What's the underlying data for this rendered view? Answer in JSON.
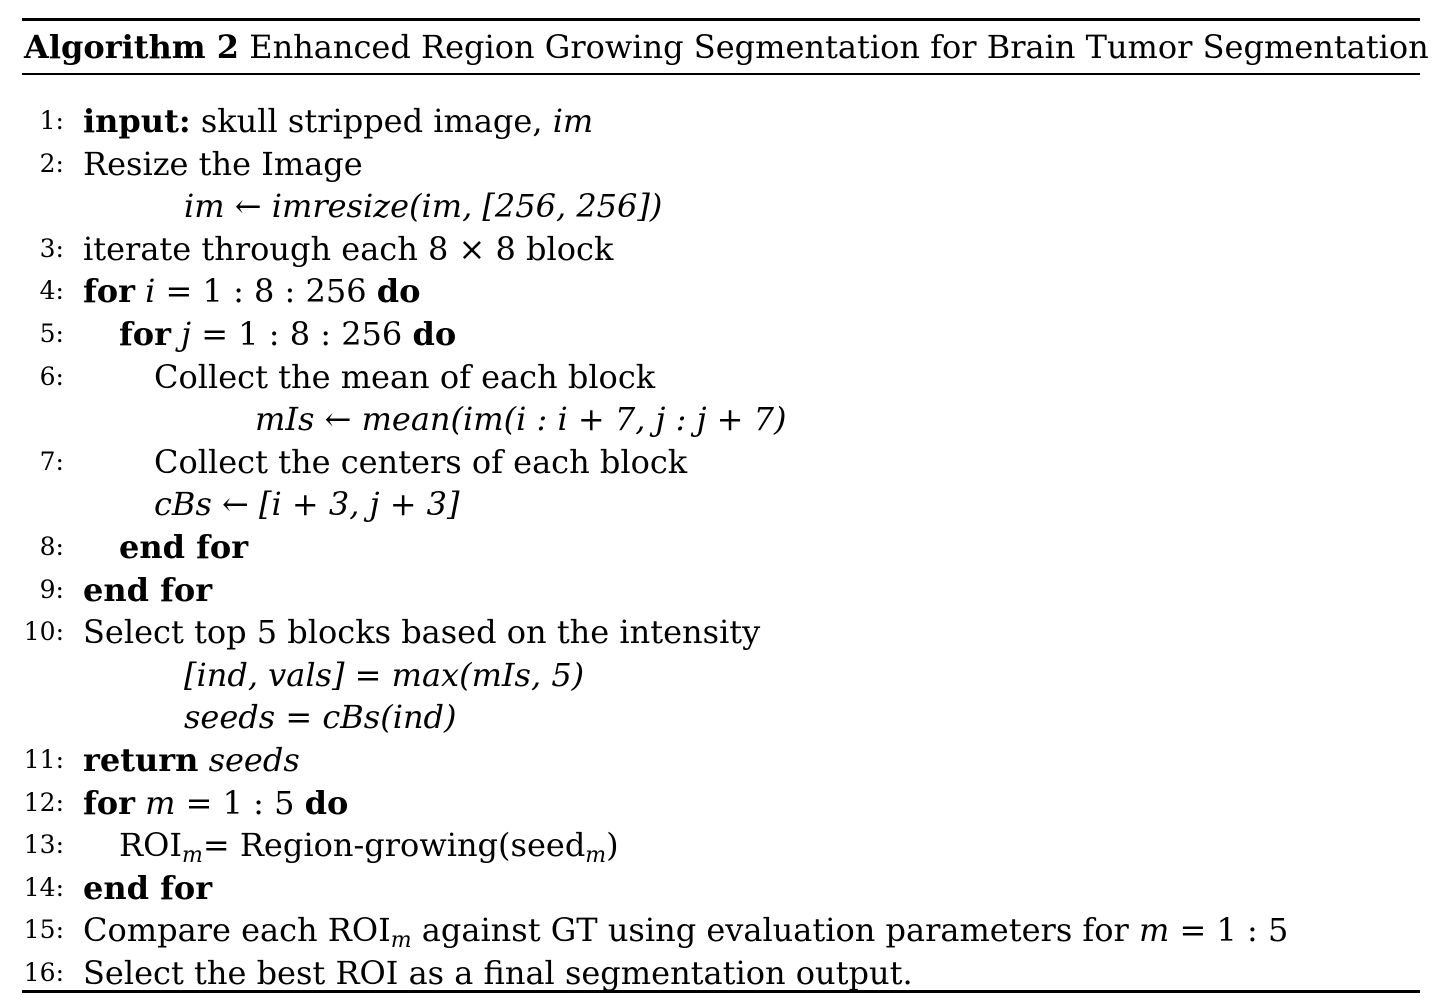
{
  "caption": {
    "label": "Algorithm 2",
    "title": "Enhanced Region Growing Segmentation for Brain Tumor Segmentation"
  },
  "lines": {
    "l1": {
      "num": "1:",
      "kw": "input:",
      "text": " skull stripped image, ",
      "var": "im"
    },
    "l2": {
      "num": "2:",
      "text": "Resize the Image",
      "math": "im ← imresize(im, [256, 256])"
    },
    "l3": {
      "num": "3:",
      "text": "iterate through each 8 × 8 block"
    },
    "l4": {
      "num": "4:",
      "kw": "for",
      "var": " i",
      "text": " = 1 : 8 : 256 ",
      "kw2": "do"
    },
    "l5": {
      "num": "5:",
      "kw": "for",
      "var": " j",
      "text": " = 1 : 8 : 256 ",
      "kw2": "do"
    },
    "l6": {
      "num": "6:",
      "text": "Collect the mean of each block",
      "math": "mIs ← mean(im(i : i + 7, j : j + 7)"
    },
    "l7": {
      "num": "7:",
      "text": "Collect the centers of each block",
      "math": "cBs ← [i + 3, j + 3]"
    },
    "l8": {
      "num": "8:",
      "kw": "end for"
    },
    "l9": {
      "num": "9:",
      "kw": "end for"
    },
    "l10": {
      "num": "10:",
      "text": "Select top 5 blocks based on the intensity",
      "math1": "[ind, vals] = max(mIs, 5)",
      "math2": "seeds = cBs(ind)"
    },
    "l11": {
      "num": "11:",
      "kw": "return",
      "var": " seeds"
    },
    "l12": {
      "num": "12:",
      "kw": "for",
      "var": " m",
      "text": " = 1 : 5 ",
      "kw2": "do"
    },
    "l13": {
      "num": "13:",
      "pre": "ROI",
      "sub": "m",
      "mid": "= Region-growing(seed",
      "sub2": "m",
      "post": ")"
    },
    "l14": {
      "num": "14:",
      "kw": "end for"
    },
    "l15": {
      "num": "15:",
      "pre": "Compare each ROI",
      "sub": "m",
      "mid": " against GT using evaluation parameters for ",
      "var": "m",
      "post": " = 1 : 5"
    },
    "l16": {
      "num": "16:",
      "text": "Select the best ROI as a final segmentation output."
    }
  }
}
